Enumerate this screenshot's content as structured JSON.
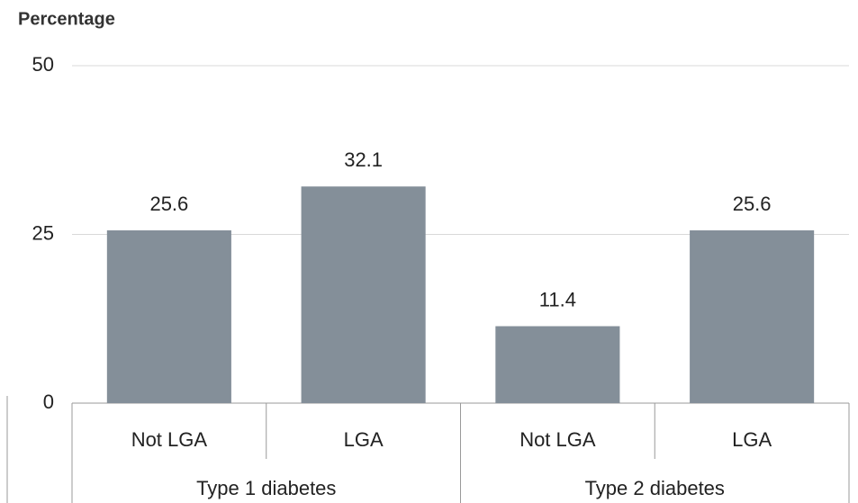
{
  "chart_data": {
    "type": "bar",
    "title": "Percentage",
    "categories": [
      "Not LGA",
      "LGA",
      "Not LGA",
      "LGA"
    ],
    "groups": [
      "Type 1 diabetes",
      "Type 2 diabetes"
    ],
    "values": [
      25.6,
      32.1,
      11.4,
      25.6
    ],
    "color": "#848f99",
    "ylim": [
      0,
      50
    ],
    "yticks": [
      0,
      25,
      50
    ],
    "grid": true
  }
}
